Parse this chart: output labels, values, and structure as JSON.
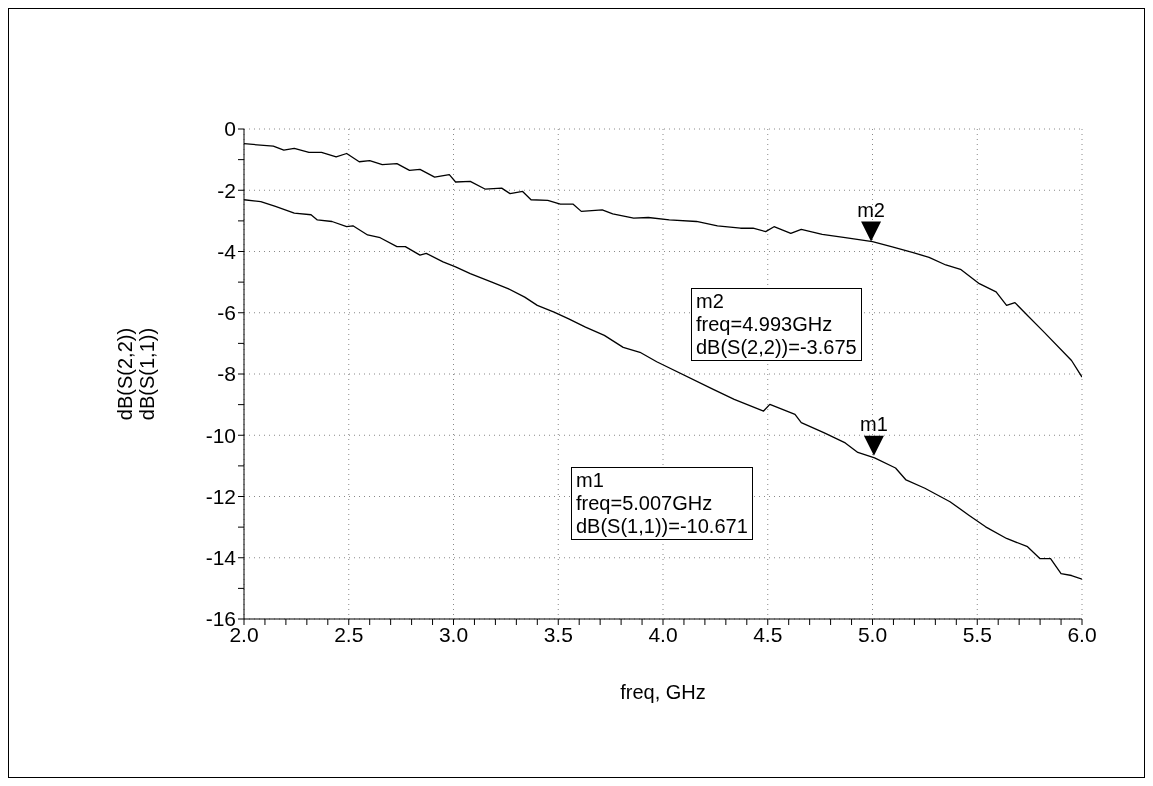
{
  "chart_data": {
    "type": "line",
    "xlabel": "freq, GHz",
    "ylabel": "dB(S(2,2))\ndB(S(1,1))",
    "xlim": [
      2,
      6
    ],
    "ylim": [
      -16,
      0
    ],
    "xticks": [
      {
        "value": 2,
        "label": "2.0"
      },
      {
        "value": 2.1,
        "label": null
      },
      {
        "value": 2.2,
        "label": null
      },
      {
        "value": 2.3,
        "label": null
      },
      {
        "value": 2.4,
        "label": null
      },
      {
        "value": 2.5,
        "label": "2.5"
      },
      {
        "value": 2.6,
        "label": null
      },
      {
        "value": 2.7,
        "label": null
      },
      {
        "value": 2.8,
        "label": null
      },
      {
        "value": 2.9,
        "label": null
      },
      {
        "value": 3,
        "label": "3.0"
      },
      {
        "value": 3.1,
        "label": null
      },
      {
        "value": 3.2,
        "label": null
      },
      {
        "value": 3.3,
        "label": null
      },
      {
        "value": 3.4,
        "label": null
      },
      {
        "value": 3.5,
        "label": "3.5"
      },
      {
        "value": 3.6,
        "label": null
      },
      {
        "value": 3.7,
        "label": null
      },
      {
        "value": 3.8,
        "label": null
      },
      {
        "value": 3.9,
        "label": null
      },
      {
        "value": 4,
        "label": "4.0"
      },
      {
        "value": 4.1,
        "label": null
      },
      {
        "value": 4.2,
        "label": null
      },
      {
        "value": 4.3,
        "label": null
      },
      {
        "value": 4.4,
        "label": null
      },
      {
        "value": 4.5,
        "label": "4.5"
      },
      {
        "value": 4.6,
        "label": null
      },
      {
        "value": 4.7,
        "label": null
      },
      {
        "value": 4.8,
        "label": null
      },
      {
        "value": 4.9,
        "label": null
      },
      {
        "value": 5,
        "label": "5.0"
      },
      {
        "value": 5.1,
        "label": null
      },
      {
        "value": 5.2,
        "label": null
      },
      {
        "value": 5.3,
        "label": null
      },
      {
        "value": 5.4,
        "label": null
      },
      {
        "value": 5.5,
        "label": "5.5"
      },
      {
        "value": 5.6,
        "label": null
      },
      {
        "value": 5.7,
        "label": null
      },
      {
        "value": 5.8,
        "label": null
      },
      {
        "value": 5.9,
        "label": null
      },
      {
        "value": 6,
        "label": "6.0"
      }
    ],
    "yticks": [
      -16,
      {
        "value": -15,
        "label": null
      },
      -14,
      {
        "value": -13,
        "label": null
      },
      -12,
      {
        "value": -11,
        "label": null
      },
      -10,
      {
        "value": -9,
        "label": null
      },
      -8,
      {
        "value": -7,
        "label": null
      },
      -6,
      {
        "value": -5,
        "label": null
      },
      -4,
      {
        "value": -3,
        "label": null
      },
      -2,
      {
        "value": -1,
        "label": null
      },
      0
    ],
    "grid": true,
    "line_style": "solid",
    "marker": "none",
    "series": [
      {
        "color": "#000000",
        "x": [
          2.0,
          2.14,
          2.19,
          2.24,
          2.31,
          2.37,
          2.44,
          2.49,
          2.55,
          2.6,
          2.66,
          2.73,
          2.79,
          2.84,
          2.91,
          2.98,
          3.01,
          3.08,
          3.15,
          3.23,
          3.27,
          3.33,
          3.37,
          3.45,
          3.51,
          3.57,
          3.61,
          3.71,
          3.76,
          3.86,
          3.93,
          4.03,
          4.16,
          4.26,
          4.37,
          4.43,
          4.49,
          4.53,
          4.61,
          4.66,
          4.76,
          4.87,
          5.0,
          5.09,
          5.19,
          5.27,
          5.35,
          5.42,
          5.51,
          5.59,
          5.64,
          5.68,
          5.74,
          5.82,
          5.95,
          6.0
        ],
        "values": [
          -0.48,
          -0.56,
          -0.69,
          -0.63,
          -0.76,
          -0.76,
          -0.91,
          -0.8,
          -1.07,
          -1.03,
          -1.16,
          -1.13,
          -1.35,
          -1.32,
          -1.57,
          -1.49,
          -1.73,
          -1.71,
          -1.96,
          -1.93,
          -2.11,
          -2.04,
          -2.31,
          -2.33,
          -2.45,
          -2.45,
          -2.69,
          -2.64,
          -2.77,
          -2.91,
          -2.89,
          -2.97,
          -3.02,
          -3.16,
          -3.24,
          -3.24,
          -3.35,
          -3.19,
          -3.41,
          -3.28,
          -3.44,
          -3.55,
          -3.68,
          -3.84,
          -4.03,
          -4.19,
          -4.44,
          -4.58,
          -5.05,
          -5.32,
          -5.76,
          -5.67,
          -6.09,
          -6.64,
          -7.56,
          -8.1
        ]
      },
      {
        "color": "#000000",
        "x": [
          2.0,
          2.08,
          2.15,
          2.24,
          2.32,
          2.35,
          2.42,
          2.49,
          2.52,
          2.59,
          2.65,
          2.73,
          2.77,
          2.84,
          2.87,
          2.95,
          3.01,
          3.08,
          3.18,
          3.26,
          3.34,
          3.4,
          3.48,
          3.55,
          3.63,
          3.72,
          3.81,
          3.89,
          3.97,
          4.24,
          4.34,
          4.48,
          4.51,
          4.63,
          4.66,
          4.77,
          4.87,
          4.93,
          5.01,
          5.11,
          5.16,
          5.25,
          5.37,
          5.46,
          5.54,
          5.64,
          5.74,
          5.8,
          5.85,
          5.9,
          5.95,
          6.0
        ],
        "values": [
          -2.31,
          -2.37,
          -2.53,
          -2.75,
          -2.8,
          -2.97,
          -3.02,
          -3.19,
          -3.16,
          -3.46,
          -3.55,
          -3.84,
          -3.84,
          -4.12,
          -4.06,
          -4.34,
          -4.5,
          -4.72,
          -4.99,
          -5.21,
          -5.49,
          -5.76,
          -5.98,
          -6.2,
          -6.47,
          -6.74,
          -7.13,
          -7.29,
          -7.6,
          -8.5,
          -8.83,
          -9.21,
          -8.99,
          -9.32,
          -9.59,
          -9.92,
          -10.25,
          -10.56,
          -10.74,
          -11.07,
          -11.46,
          -11.73,
          -12.17,
          -12.61,
          -12.99,
          -13.37,
          -13.64,
          -14.03,
          -14.03,
          -14.52,
          -14.58,
          -14.7
        ]
      }
    ],
    "annotations": [
      {
        "text": "m2",
        "x": 4.993,
        "y": -3.675
      },
      "m2\nfreq=4.993GHz\ndB(S(2,2))=-3.675",
      {
        "text": "m1",
        "x": 5.007,
        "y": -10.671
      },
      "m1\nfreq=5.007GHz\ndB(S(1,1))=-10.671"
    ]
  }
}
